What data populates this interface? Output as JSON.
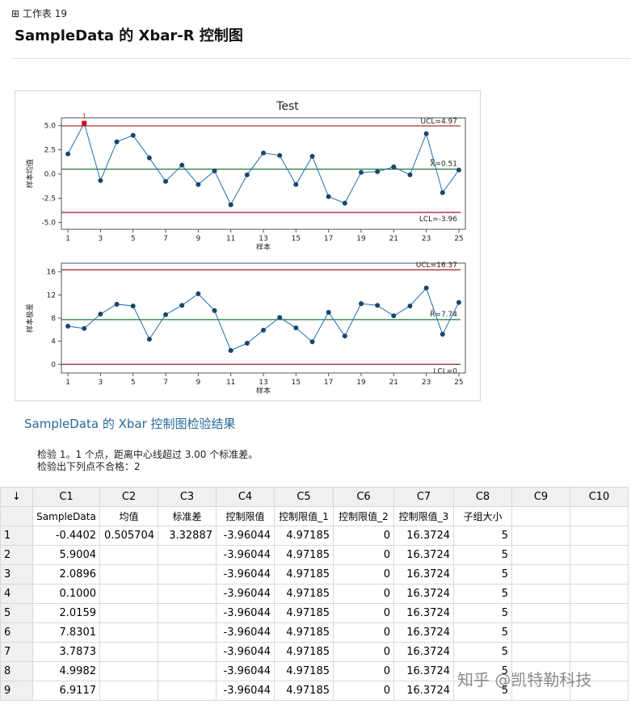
{
  "header": {
    "sheet": "工作表 19",
    "title": "SampleData 的 Xbar-R 控制图"
  },
  "chart_data": [
    {
      "type": "line",
      "title": "Test",
      "x_label": "样本",
      "y_label": "样本均值",
      "x": [
        1,
        2,
        3,
        4,
        5,
        6,
        7,
        8,
        9,
        10,
        11,
        12,
        13,
        14,
        15,
        16,
        17,
        18,
        19,
        20,
        21,
        22,
        23,
        24,
        25
      ],
      "series": [
        {
          "name": "样本均值",
          "color": "#1f6fb0",
          "marker_color": "#17466f",
          "values": [
            2.08,
            5.25,
            -0.67,
            3.33,
            4.0,
            1.67,
            -0.75,
            0.92,
            -1.08,
            0.33,
            -3.17,
            -0.08,
            2.17,
            1.92,
            -1.08,
            1.83,
            -2.33,
            -3.0,
            0.17,
            0.25,
            0.75,
            -0.08,
            4.17,
            -1.92,
            0.42
          ]
        }
      ],
      "limits": [
        {
          "label": "UCL=4.97",
          "value": 4.97,
          "color": "#9b1c1c"
        },
        {
          "label": "X̿=0.51",
          "value": 0.51,
          "color": "#1b7a3a"
        },
        {
          "label": "LCL=-3.96",
          "value": -3.96,
          "color": "#9b1c1c"
        }
      ],
      "flags": [
        {
          "x": 2,
          "text": "1",
          "color": "#d01010"
        }
      ],
      "xlim": [
        0.6,
        25.4
      ],
      "ylim": [
        -5.7,
        5.8
      ],
      "xticks": [
        1,
        3,
        5,
        7,
        9,
        11,
        13,
        15,
        17,
        19,
        21,
        23,
        25
      ],
      "yticks": [
        {
          "value": -5,
          "label": "-5.0"
        },
        {
          "value": -2.5,
          "label": "-2.5"
        },
        {
          "value": 0,
          "label": "0.0"
        },
        {
          "value": 2.5,
          "label": "2.5"
        },
        {
          "value": 5,
          "label": "5.0"
        }
      ]
    },
    {
      "type": "line",
      "x_label": "样本",
      "y_label": "样本极差",
      "x": [
        1,
        2,
        3,
        4,
        5,
        6,
        7,
        8,
        9,
        10,
        11,
        12,
        13,
        14,
        15,
        16,
        17,
        18,
        19,
        20,
        21,
        22,
        23,
        24,
        25
      ],
      "series": [
        {
          "name": "样本极差",
          "color": "#1f6fb0",
          "marker_color": "#17466f",
          "values": [
            6.6,
            6.2,
            8.7,
            10.4,
            10.1,
            4.35,
            8.6,
            10.2,
            12.2,
            9.3,
            2.4,
            3.65,
            5.9,
            8.1,
            6.3,
            3.9,
            9.0,
            4.9,
            10.5,
            10.2,
            8.4,
            10.1,
            13.2,
            5.2,
            10.7
          ]
        }
      ],
      "limits": [
        {
          "label": "UCL=16.37",
          "value": 16.37,
          "color": "#9b1c1c"
        },
        {
          "label": "R̄=7.74",
          "value": 7.74,
          "color": "#1b7a3a"
        },
        {
          "label": "LCL=0",
          "value": 0,
          "color": "#9b1c1c"
        }
      ],
      "xlim": [
        0.6,
        25.4
      ],
      "ylim": [
        -1.5,
        17.5
      ],
      "xticks": [
        1,
        3,
        5,
        7,
        9,
        11,
        13,
        15,
        17,
        19,
        21,
        23,
        25
      ],
      "yticks": [
        0,
        4,
        8,
        12,
        16
      ]
    }
  ],
  "results": {
    "title": "SampleData 的 Xbar 控制图检验结果",
    "lines": [
      "检验 1。1 个点，距离中心线超过 3.00 个标准差。",
      "检验出下列点不合格：2"
    ]
  },
  "table": {
    "columns": [
      "C1",
      "C2",
      "C3",
      "C4",
      "C5",
      "C6",
      "C7",
      "C8",
      "C9",
      "C10"
    ],
    "names": [
      "SampleData",
      "均值",
      "标准差",
      "控制限值",
      "控制限值_1",
      "控制限值_2",
      "控制限值_3",
      "子组大小",
      null,
      null
    ],
    "row_numbers": [
      "1",
      "2",
      "3",
      "4",
      "5",
      "6",
      "7",
      "8",
      "9"
    ],
    "rows": [
      [
        "-0.4402",
        "0.505704",
        "3.32887",
        "-3.96044",
        "4.97185",
        "0",
        "16.3724",
        "5",
        null,
        null
      ],
      [
        "5.9004",
        null,
        null,
        "-3.96044",
        "4.97185",
        "0",
        "16.3724",
        "5",
        null,
        null
      ],
      [
        "2.0896",
        null,
        null,
        "-3.96044",
        "4.97185",
        "0",
        "16.3724",
        "5",
        null,
        null
      ],
      [
        "0.1000",
        null,
        null,
        "-3.96044",
        "4.97185",
        "0",
        "16.3724",
        "5",
        null,
        null
      ],
      [
        "2.0159",
        null,
        null,
        "-3.96044",
        "4.97185",
        "0",
        "16.3724",
        "5",
        null,
        null
      ],
      [
        "7.8301",
        null,
        null,
        "-3.96044",
        "4.97185",
        "0",
        "16.3724",
        "5",
        null,
        null
      ],
      [
        "3.7873",
        null,
        null,
        "-3.96044",
        "4.97185",
        "0",
        "16.3724",
        "5",
        null,
        null
      ],
      [
        "4.9982",
        null,
        null,
        "-3.96044",
        "4.97185",
        "0",
        "16.3724",
        "5",
        null,
        null
      ],
      [
        "6.9117",
        null,
        null,
        "-3.96044",
        "4.97185",
        "0",
        "16.3724",
        "5",
        null,
        null
      ]
    ]
  },
  "watermark": "知乎 @凯特勒科技"
}
